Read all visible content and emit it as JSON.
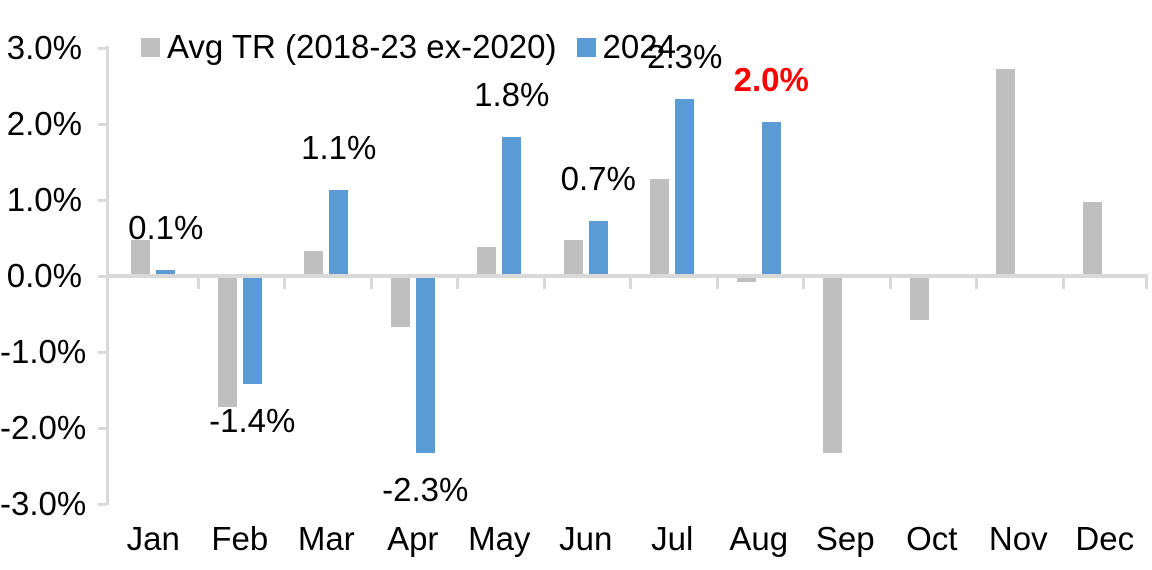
{
  "chart_data": {
    "type": "bar",
    "title": "",
    "categories": [
      "Jan",
      "Feb",
      "Mar",
      "Apr",
      "May",
      "Jun",
      "Jul",
      "Aug",
      "Sep",
      "Oct",
      "Nov",
      "Dec"
    ],
    "series": [
      {
        "name": "Avg TR (2018-23 ex-2020)",
        "color": "#BFBFBF",
        "values": [
          0.45,
          -1.7,
          0.3,
          -0.65,
          0.35,
          0.45,
          1.25,
          -0.05,
          -2.3,
          -0.55,
          2.7,
          0.95
        ]
      },
      {
        "name": "2024",
        "color": "#5B9BD5",
        "values": [
          0.05,
          -1.4,
          1.1,
          -2.3,
          1.8,
          0.7,
          2.3,
          2.0,
          null,
          null,
          null,
          null
        ],
        "data_labels": [
          {
            "text": "0.1%",
            "color": "#000000",
            "bold": false
          },
          {
            "text": "-1.4%",
            "color": "#000000",
            "bold": false
          },
          {
            "text": "1.1%",
            "color": "#000000",
            "bold": false
          },
          {
            "text": "-2.3%",
            "color": "#000000",
            "bold": false
          },
          {
            "text": "1.8%",
            "color": "#000000",
            "bold": false
          },
          {
            "text": "0.7%",
            "color": "#000000",
            "bold": false
          },
          {
            "text": "2.3%",
            "color": "#000000",
            "bold": false
          },
          {
            "text": "2.0%",
            "color": "#FF0000",
            "bold": true
          },
          null,
          null,
          null,
          null
        ]
      }
    ],
    "y_axis": {
      "tick_labels": [
        "3.0%",
        "2.0%",
        "1.0%",
        "0.0%",
        "-1.0%",
        "-2.0%",
        "-3.0%"
      ],
      "min": -3.0,
      "max": 3.0,
      "step": 1.0,
      "format": "percent"
    },
    "x_axis": {
      "label": ""
    },
    "legend": {
      "position": "top-left",
      "entries": [
        "Avg TR (2018-23 ex-2020)",
        "2024"
      ]
    },
    "grid": false,
    "colors": {
      "axis": "#D9D9D9",
      "text": "#000000",
      "highlight_label": "#FF0000",
      "background": "#FFFFFF"
    }
  }
}
